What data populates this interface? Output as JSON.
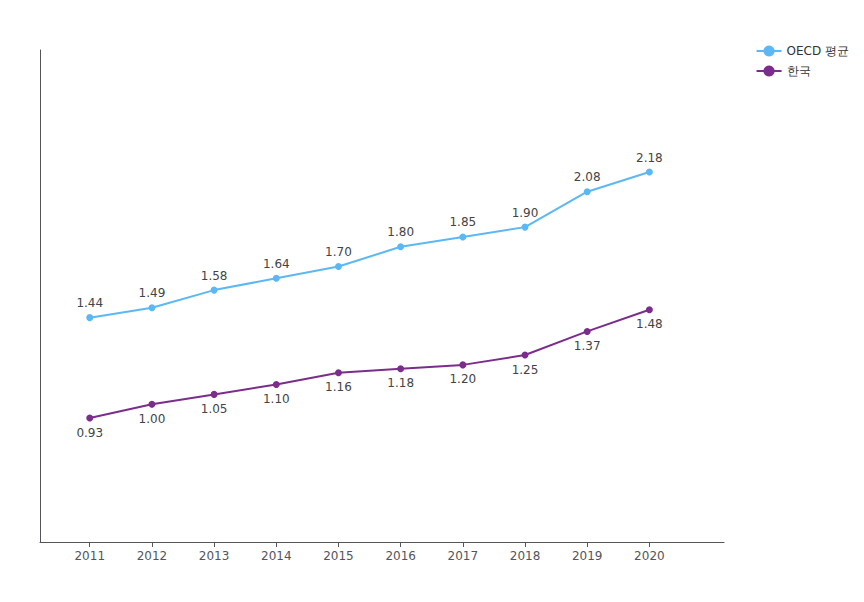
{
  "chart_data": {
    "type": "line",
    "x": [
      2011,
      2012,
      2013,
      2014,
      2015,
      2016,
      2017,
      2018,
      2019,
      2020
    ],
    "series": [
      {
        "name": "OECD 평균",
        "color": "#5BB8F5",
        "marker": "circle",
        "values": [
          1.44,
          1.49,
          1.58,
          1.64,
          1.7,
          1.8,
          1.85,
          1.9,
          2.08,
          2.18
        ],
        "value_labels": [
          "1.44",
          "1.49",
          "1.58",
          "1.64",
          "1.70",
          "1.80",
          "1.85",
          "1.90",
          "2.08",
          "2.18"
        ]
      },
      {
        "name": "한국",
        "color": "#7B2D8B",
        "marker": "circle",
        "values": [
          0.93,
          1.0,
          1.05,
          1.1,
          1.16,
          1.18,
          1.2,
          1.25,
          1.37,
          1.48
        ],
        "value_labels": [
          "0.93",
          "1.00",
          "1.05",
          "1.10",
          "1.16",
          "1.18",
          "1.20",
          "1.25",
          "1.37",
          "1.48"
        ]
      }
    ],
    "xlim": [
      2010.2,
      2021.2
    ],
    "xticks": [
      2011,
      2012,
      2013,
      2014,
      2015,
      2016,
      2017,
      2018,
      2019,
      2020
    ],
    "ylim": [
      0.3,
      2.8
    ],
    "grid": false,
    "legend": "upper right",
    "data_labels": true,
    "tick_labels": "x"
  }
}
